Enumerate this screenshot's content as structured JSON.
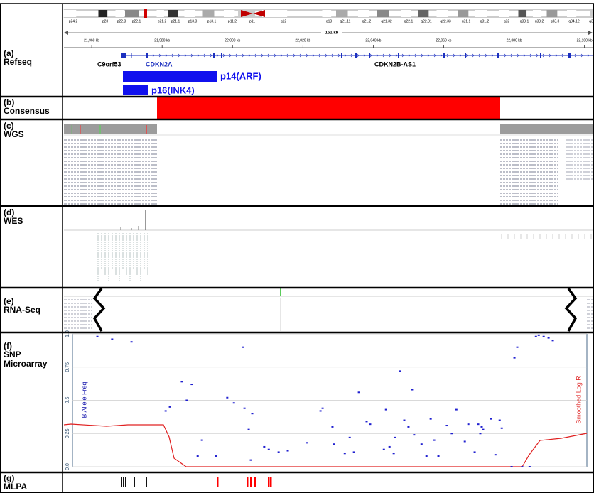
{
  "panels": [
    {
      "tag": "(a)",
      "lines": [
        "Refseq"
      ]
    },
    {
      "tag": "(b)",
      "lines": [
        "Consensus"
      ]
    },
    {
      "tag": "(c)",
      "lines": [
        "WGS"
      ]
    },
    {
      "tag": "(d)",
      "lines": [
        "WES"
      ]
    },
    {
      "tag": "(e)",
      "lines": [
        "RNA-Seq"
      ]
    },
    {
      "tag": "(f)",
      "lines": [
        "SNP",
        "Microarray"
      ]
    },
    {
      "tag": "(g)",
      "lines": [
        "MLPA"
      ]
    }
  ],
  "refseq": {
    "cytobands": [
      "p24.2",
      "p23",
      "p22.3",
      "p22.1",
      "p21.2",
      "p21.1",
      "p13.3",
      "p13.1",
      "p11.2",
      "p11",
      "q12",
      "q13",
      "q21.11",
      "q21.2",
      "q21.32",
      "q22.1",
      "q22.31",
      "q22.33",
      "q31.1",
      "q31.2",
      "q32",
      "q33.1",
      "q33.2",
      "q33.3",
      "q34.12",
      "q3"
    ],
    "span_label": "151 kb",
    "xlim": [
      21951.7,
      22102.7
    ],
    "xticks": [
      {
        "value": 21960,
        "label": "21,960 kb"
      },
      {
        "value": 21980,
        "label": "21,980 kb"
      },
      {
        "value": 22000,
        "label": "22,000 kb"
      },
      {
        "value": 22020,
        "label": "22,020 kb"
      },
      {
        "value": 22040,
        "label": "22,040 kb"
      },
      {
        "value": 22060,
        "label": "22,060 kb"
      },
      {
        "value": 22080,
        "label": "22,080 kb"
      },
      {
        "value": 22100,
        "label": "22,100 kb"
      }
    ],
    "genes": [
      "C9orf53",
      "CDKN2A",
      "CDKN2B-AS1"
    ],
    "transcripts": [
      "p14(ARF)",
      "p16(INK4)"
    ]
  },
  "snp_microarray": {
    "type": "scatter",
    "y_label": "B Allele Freq",
    "y2_label": "Smoothed Log R",
    "color": "#2020d0",
    "ylim": [
      0,
      1
    ],
    "yticks": [
      {
        "value": 0,
        "label": "0.0"
      },
      0.25,
      0.5,
      0.75,
      {
        "value": 1,
        "label": "1.0"
      }
    ],
    "x": [
      21961.6,
      21965.8,
      21971.3,
      21985.6,
      21987.0,
      21988.4,
      21982.2,
      21981.0,
      21991.3,
      21990.1,
      21995.3,
      21998.5,
      22000.4,
      22003.0,
      22003.4,
      22005.6,
      22004.6,
      22009.0,
      22010.3,
      22005.2,
      22013.1,
      22015.7,
      22021.2,
      22025.0,
      22025.6,
      22028.4,
      22028.8,
      22031.9,
      22033.3,
      22034.5,
      22035.9,
      22038.1,
      22039.1,
      22043.0,
      22043.6,
      22044.6,
      22045.8,
      22046.2,
      22047.6,
      22048.8,
      22050.0,
      22051.0,
      22051.6,
      22053.7,
      22055.1,
      22056.3,
      22057.3,
      22058.5,
      22060.9,
      22062.3,
      22063.6,
      22066.0,
      22067.0,
      22068.8,
      22069.8,
      22070.4,
      22070.8,
      22071.2,
      22073.4,
      22074.7,
      22075.9,
      22076.5,
      22080.1,
      22080.9,
      22086.2,
      22087.0,
      22088.4,
      22089.8,
      22091.0,
      22079.3,
      22082.3,
      22084.4
    ],
    "values": [
      0.98,
      0.96,
      0.94,
      0.64,
      0.5,
      0.62,
      0.45,
      0.42,
      0.2,
      0.08,
      0.08,
      0.52,
      0.48,
      0.9,
      0.44,
      0.4,
      0.28,
      0.15,
      0.13,
      0.05,
      0.11,
      0.12,
      0.18,
      0.42,
      0.44,
      0.3,
      0.17,
      0.1,
      0.22,
      0.11,
      0.56,
      0.34,
      0.32,
      0.13,
      0.43,
      0.15,
      0.1,
      0.22,
      0.72,
      0.35,
      0.3,
      0.58,
      0.24,
      0.17,
      0.08,
      0.36,
      0.2,
      0.08,
      0.31,
      0.25,
      0.43,
      0.19,
      0.32,
      0.11,
      0.32,
      0.25,
      0.3,
      0.28,
      0.36,
      0.09,
      0.35,
      0.29,
      0.82,
      0.9,
      0.98,
      0.99,
      0.98,
      0.97,
      0.95,
      0,
      0,
      0
    ]
  }
}
